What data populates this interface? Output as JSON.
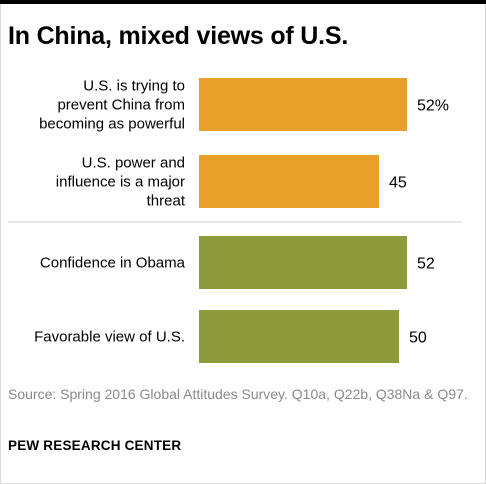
{
  "title": "In China, mixed views of U.S.",
  "source": "Source: Spring 2016 Global Attitudes Survey. Q10a, Q22b, Q38Na & Q97.",
  "organization": "PEW RESEARCH CENTER",
  "colors": {
    "orange": "#E8A02A",
    "olive": "#8E9B3D",
    "divider": "#cfcfcf"
  },
  "chart_data": {
    "type": "bar",
    "orientation": "horizontal",
    "categories": [
      [
        "U.S. is trying to",
        "prevent China from",
        "becoming as powerful"
      ],
      [
        "U.S. power and",
        "influence is a major",
        "threat"
      ],
      [
        "Confidence in Obama"
      ],
      [
        "Favorable  view of U.S."
      ]
    ],
    "values": [
      52,
      45,
      52,
      50
    ],
    "value_labels": [
      "52%",
      "45",
      "52",
      "50"
    ],
    "bar_colors": [
      "#E8A02A",
      "#E8A02A",
      "#8E9B3D",
      "#8E9B3D"
    ],
    "xlim": [
      0,
      60
    ],
    "grid": false,
    "divider_after_index": 1
  }
}
